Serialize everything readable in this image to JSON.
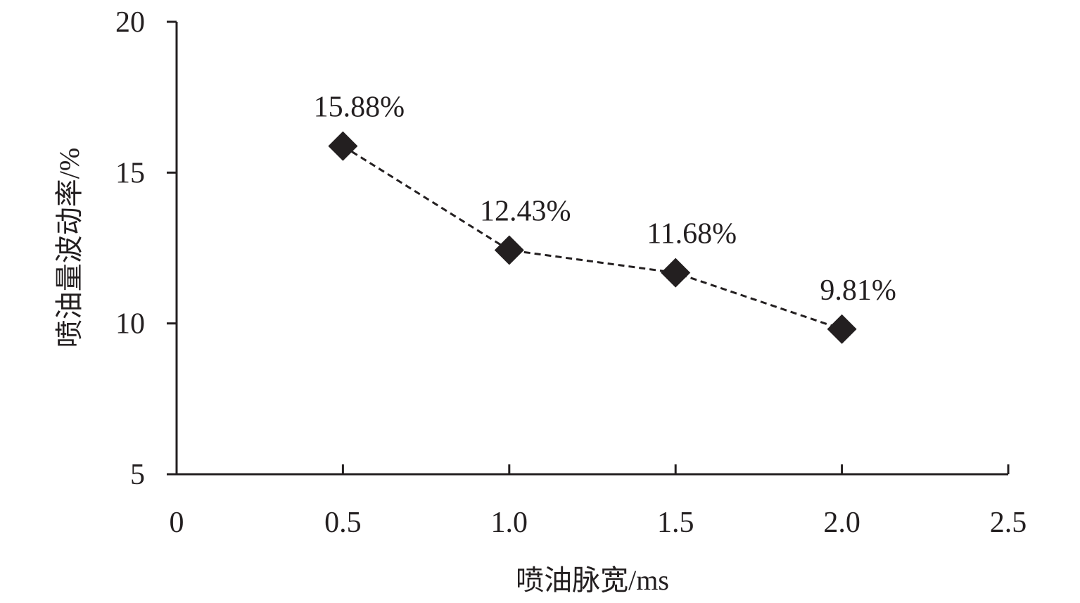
{
  "chart_data": {
    "type": "line",
    "title": "",
    "xlabel": "喷油脉宽/ms",
    "ylabel": "喷油量波动率/%",
    "xlim": [
      0,
      2.5
    ],
    "ylim": [
      5,
      20
    ],
    "xticks": [
      "0",
      "0.5",
      "1.0",
      "1.5",
      "2.0",
      "2.5"
    ],
    "xtick_values": [
      0,
      0.5,
      1.0,
      1.5,
      2.0,
      2.5
    ],
    "yticks": [
      "5",
      "10",
      "15",
      "20"
    ],
    "ytick_values": [
      5,
      10,
      15,
      20
    ],
    "grid": false,
    "series": [
      {
        "name": "喷油量波动率",
        "marker": "diamond",
        "line_style": "dashed",
        "color": "#231f20",
        "x": [
          0.5,
          1.0,
          1.5,
          2.0
        ],
        "y": [
          15.88,
          12.43,
          11.68,
          9.81
        ],
        "labels": [
          "15.88%",
          "12.43%",
          "11.68%",
          "9.81%"
        ]
      }
    ]
  }
}
